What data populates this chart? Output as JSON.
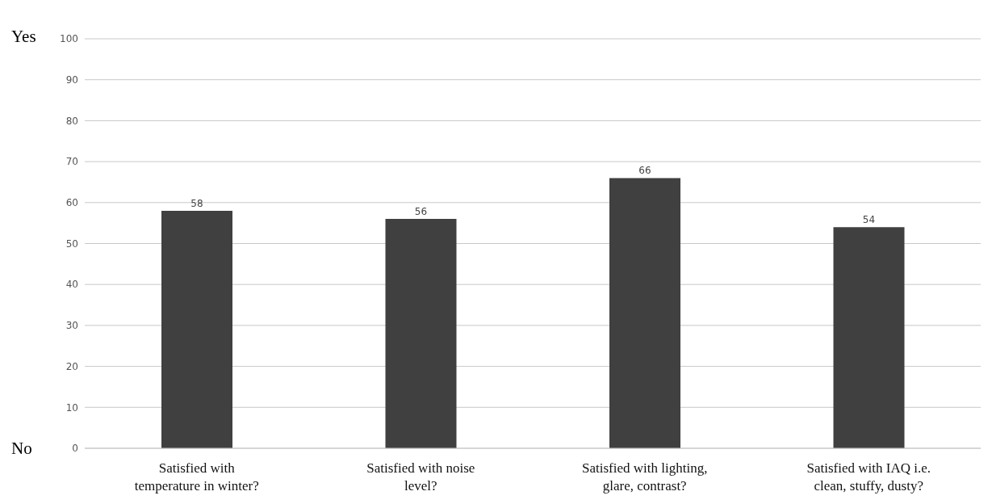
{
  "chart_data": {
    "type": "bar",
    "categories": [
      "Satisfied with temperature in winter?",
      "Satisfied with noise level?",
      "Satisfied with lighting, glare, contrast?",
      "Satisfied with IAQ i.e. clean, stuffy, dusty?"
    ],
    "values": [
      58,
      56,
      66,
      54
    ],
    "color": "#404040",
    "ylim": [
      0,
      100
    ],
    "yticks": [
      0,
      10,
      20,
      30,
      40,
      50,
      60,
      70,
      80,
      90,
      100
    ],
    "grid": "y",
    "data_labels": true,
    "legend": false,
    "annotations": [
      "Yes",
      "No"
    ]
  }
}
